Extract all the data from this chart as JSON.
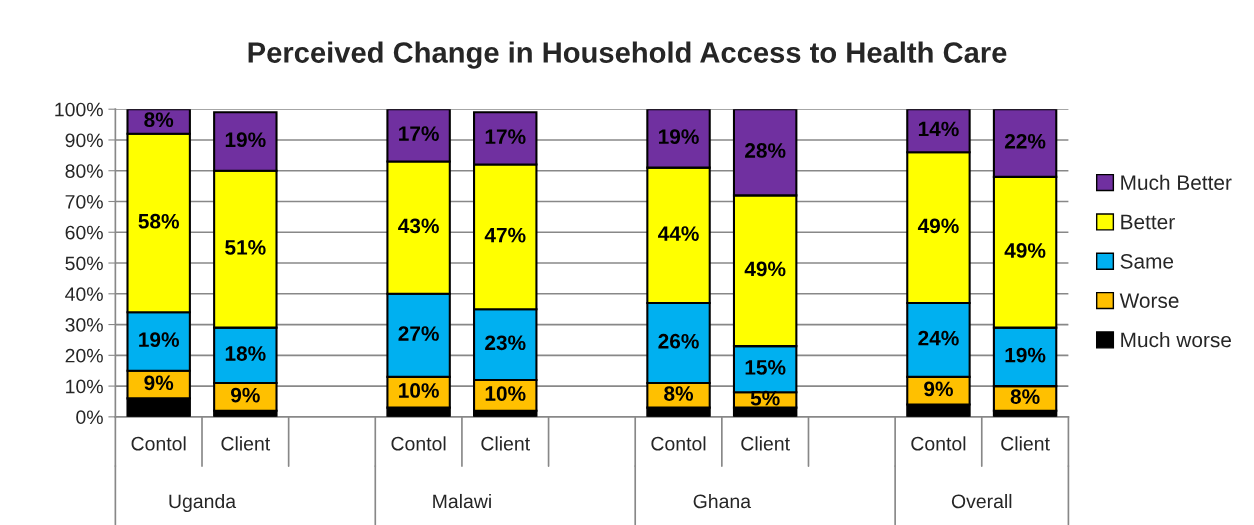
{
  "chart_data": {
    "type": "bar",
    "stacked": true,
    "title": "Perceived Change in Household Access to Health Care",
    "categories": [
      "Contol",
      "Client",
      null,
      "Contol",
      "Client",
      null,
      "Contol",
      "Client",
      null,
      "Contol",
      "Client"
    ],
    "series": [
      {
        "name": "Much worse",
        "color": "#000000",
        "values": [
          6,
          2,
          null,
          3,
          2,
          null,
          3,
          3,
          null,
          4,
          2
        ],
        "value_labels": [
          null,
          null,
          null,
          null,
          null,
          null,
          null,
          null,
          null,
          null,
          null
        ]
      },
      {
        "name": "Worse",
        "color": "#ffc000",
        "values": [
          9,
          9,
          null,
          10,
          10,
          null,
          8,
          5,
          null,
          9,
          8
        ],
        "value_labels": [
          "9%",
          "9%",
          null,
          "10%",
          "10%",
          null,
          "8%",
          "5%",
          null,
          "9%",
          "8%"
        ]
      },
      {
        "name": "Same",
        "color": "#00b0f0",
        "values": [
          19,
          18,
          null,
          27,
          23,
          null,
          26,
          15,
          null,
          24,
          19
        ],
        "value_labels": [
          "19%",
          "18%",
          null,
          "27%",
          "23%",
          null,
          "26%",
          "15%",
          null,
          "24%",
          "19%"
        ]
      },
      {
        "name": "Better",
        "color": "#ffff00",
        "values": [
          58,
          51,
          null,
          43,
          47,
          null,
          44,
          49,
          null,
          49,
          49
        ],
        "value_labels": [
          "58%",
          "51%",
          null,
          "43%",
          "47%",
          null,
          "44%",
          "49%",
          null,
          "49%",
          "49%"
        ]
      },
      {
        "name": "Much Better",
        "color": "#7030a0",
        "values": [
          8,
          19,
          null,
          17,
          17,
          null,
          19,
          28,
          null,
          14,
          22
        ],
        "value_labels": [
          "8%",
          "19%",
          null,
          "17%",
          "17%",
          null,
          "19%",
          "28%",
          null,
          "14%",
          "22%"
        ]
      }
    ],
    "annotations": [
      "Uganda",
      "Malawi",
      "Ghana",
      "Overall"
    ],
    "ylim": [
      0,
      100
    ],
    "yticks": [
      {
        "value": 0,
        "label": "0%"
      },
      {
        "value": 10,
        "label": "10%"
      },
      {
        "value": 20,
        "label": "20%"
      },
      {
        "value": 30,
        "label": "30%"
      },
      {
        "value": 40,
        "label": "40%"
      },
      {
        "value": 50,
        "label": "50%"
      },
      {
        "value": 60,
        "label": "60%"
      },
      {
        "value": 70,
        "label": "70%"
      },
      {
        "value": 80,
        "label": "80%"
      },
      {
        "value": 90,
        "label": "90%"
      },
      {
        "value": 100,
        "label": "100%"
      }
    ],
    "grid": "y",
    "legend": "right"
  }
}
